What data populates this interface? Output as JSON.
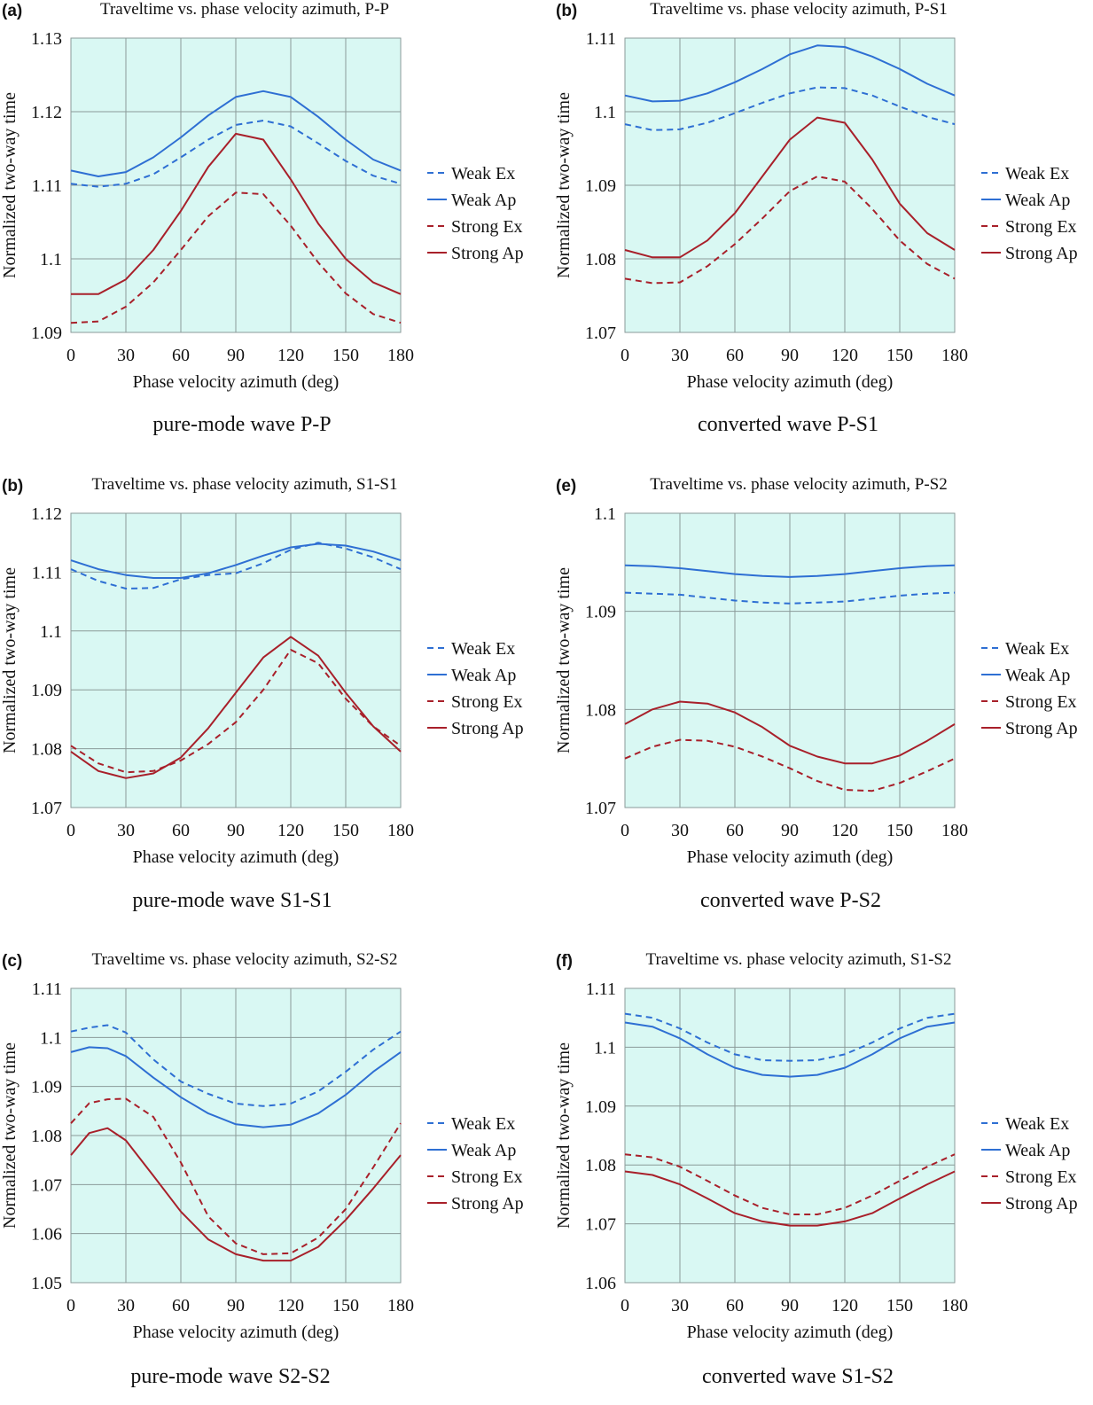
{
  "figure": {
    "captions": [
      "pure-mode wave P-P",
      "converted wave P-S1",
      "pure-mode wave S1-S1",
      "converted wave P-S2",
      "pure-mode wave S2-S2",
      "converted wave S1-S2"
    ]
  },
  "colors": {
    "plot_background": "#d9f8f3",
    "grid": "#8a9a98",
    "weak": "#2e6fd3",
    "strong": "#a8202a"
  },
  "chart_data": [
    {
      "type": "line",
      "panel_label": "(a)",
      "title": "Traveltime vs. phase velocity azimuth, P-P",
      "xlabel": "Phase velocity azimuth (deg)",
      "ylabel": "Normalized two-way time",
      "xlim": [
        0,
        180
      ],
      "ylim": [
        1.09,
        1.13
      ],
      "xticks": [
        0,
        30,
        60,
        90,
        120,
        150,
        180
      ],
      "yticks": [
        1.09,
        1.1,
        1.11,
        1.12,
        1.13
      ],
      "ytick_labels": [
        "1.09",
        "1.1",
        "1.11",
        "1.12",
        "1.13"
      ],
      "grid": true,
      "legend": "right",
      "x": [
        0,
        15,
        30,
        45,
        60,
        75,
        90,
        105,
        120,
        135,
        150,
        165,
        180
      ],
      "series": [
        {
          "name": "Weak Ex",
          "style": "dashed",
          "color": "weak",
          "values": [
            1.1102,
            1.1098,
            1.1102,
            1.1115,
            1.1138,
            1.1162,
            1.1182,
            1.1188,
            1.118,
            1.1157,
            1.1133,
            1.1113,
            1.1102
          ]
        },
        {
          "name": "Weak Ap",
          "style": "solid",
          "color": "weak",
          "values": [
            1.112,
            1.1112,
            1.1118,
            1.1138,
            1.1165,
            1.1195,
            1.122,
            1.1228,
            1.122,
            1.1193,
            1.1162,
            1.1135,
            1.112
          ]
        },
        {
          "name": "Strong Ex",
          "style": "dashed",
          "color": "strong",
          "values": [
            1.0913,
            1.0915,
            1.0935,
            1.0968,
            1.1012,
            1.1058,
            1.109,
            1.1088,
            1.1045,
            1.0995,
            1.0953,
            1.0925,
            1.0913
          ]
        },
        {
          "name": "Strong Ap",
          "style": "solid",
          "color": "strong",
          "values": [
            1.0952,
            1.0952,
            1.0972,
            1.1012,
            1.1065,
            1.1125,
            1.117,
            1.1162,
            1.1108,
            1.1048,
            1.1,
            1.0968,
            1.0952
          ]
        }
      ]
    },
    {
      "type": "line",
      "panel_label": "(b)",
      "title": "Traveltime vs. phase velocity azimuth, P-S1",
      "xlabel": "Phase velocity azimuth (deg)",
      "ylabel": "Normalized two-way time",
      "xlim": [
        0,
        180
      ],
      "ylim": [
        1.07,
        1.11
      ],
      "xticks": [
        0,
        30,
        60,
        90,
        120,
        150,
        180
      ],
      "yticks": [
        1.07,
        1.08,
        1.09,
        1.1,
        1.11
      ],
      "ytick_labels": [
        "1.07",
        "1.08",
        "1.09",
        "1.1",
        "1.11"
      ],
      "grid": true,
      "legend": "right",
      "x": [
        0,
        15,
        30,
        45,
        60,
        75,
        90,
        105,
        120,
        135,
        150,
        165,
        180
      ],
      "series": [
        {
          "name": "Weak Ex",
          "style": "dashed",
          "color": "weak",
          "values": [
            1.0983,
            1.0975,
            1.0976,
            1.0985,
            1.0998,
            1.1012,
            1.1025,
            1.1033,
            1.1032,
            1.1022,
            1.1007,
            1.0993,
            1.0983
          ]
        },
        {
          "name": "Weak Ap",
          "style": "solid",
          "color": "weak",
          "values": [
            1.1022,
            1.1014,
            1.1015,
            1.1025,
            1.104,
            1.1058,
            1.1078,
            1.109,
            1.1088,
            1.1075,
            1.1058,
            1.1038,
            1.1022
          ]
        },
        {
          "name": "Strong Ex",
          "style": "dashed",
          "color": "strong",
          "values": [
            1.0773,
            1.0767,
            1.0768,
            1.079,
            1.082,
            1.0855,
            1.0892,
            1.0912,
            1.0905,
            1.0868,
            1.0825,
            1.0793,
            1.0773
          ]
        },
        {
          "name": "Strong Ap",
          "style": "solid",
          "color": "strong",
          "values": [
            1.0812,
            1.0802,
            1.0802,
            1.0825,
            1.0862,
            1.0912,
            1.0962,
            1.0992,
            1.0985,
            1.0935,
            1.0875,
            1.0835,
            1.0812
          ]
        }
      ]
    },
    {
      "type": "line",
      "panel_label": "(b)",
      "title": "Traveltime vs. phase velocity azimuth, S1-S1",
      "xlabel": "Phase velocity azimuth (deg)",
      "ylabel": "Normalized two-way time",
      "xlim": [
        0,
        180
      ],
      "ylim": [
        1.07,
        1.12
      ],
      "xticks": [
        0,
        30,
        60,
        90,
        120,
        150,
        180
      ],
      "yticks": [
        1.07,
        1.08,
        1.09,
        1.1,
        1.11,
        1.12
      ],
      "ytick_labels": [
        "1.07",
        "1.08",
        "1.09",
        "1.1",
        "1.11",
        "1.12"
      ],
      "grid": true,
      "legend": "right",
      "x": [
        0,
        15,
        30,
        45,
        60,
        75,
        90,
        105,
        120,
        135,
        150,
        165,
        180
      ],
      "series": [
        {
          "name": "Weak Ex",
          "style": "dashed",
          "color": "weak",
          "values": [
            1.1105,
            1.1085,
            1.1072,
            1.1073,
            1.1088,
            1.1095,
            1.1098,
            1.1115,
            1.1138,
            1.115,
            1.114,
            1.1125,
            1.1105
          ]
        },
        {
          "name": "Weak Ap",
          "style": "solid",
          "color": "weak",
          "values": [
            1.112,
            1.1105,
            1.1095,
            1.109,
            1.109,
            1.1098,
            1.1112,
            1.1128,
            1.1142,
            1.1148,
            1.1145,
            1.1135,
            1.112
          ]
        },
        {
          "name": "Strong Ex",
          "style": "dashed",
          "color": "strong",
          "values": [
            1.0805,
            1.0775,
            1.076,
            1.0762,
            1.078,
            1.0808,
            1.0845,
            1.09,
            1.0968,
            1.0945,
            1.0885,
            1.0838,
            1.0805
          ]
        },
        {
          "name": "Strong Ap",
          "style": "solid",
          "color": "strong",
          "values": [
            1.0795,
            1.0762,
            1.075,
            1.0758,
            1.0785,
            1.0835,
            1.0895,
            1.0955,
            1.099,
            1.0958,
            1.0895,
            1.0838,
            1.0795
          ]
        }
      ]
    },
    {
      "type": "line",
      "panel_label": "(e)",
      "title": "Traveltime vs. phase velocity azimuth, P-S2",
      "xlabel": "Phase velocity azimuth (deg)",
      "ylabel": "Normalized two-way time",
      "xlim": [
        0,
        180
      ],
      "ylim": [
        1.07,
        1.1
      ],
      "xticks": [
        0,
        30,
        60,
        90,
        120,
        150,
        180
      ],
      "yticks": [
        1.07,
        1.08,
        1.09,
        1.1
      ],
      "ytick_labels": [
        "1.07",
        "1.08",
        "1.09",
        "1.1"
      ],
      "grid": true,
      "legend": "right",
      "x": [
        0,
        15,
        30,
        45,
        60,
        75,
        90,
        105,
        120,
        135,
        150,
        165,
        180
      ],
      "series": [
        {
          "name": "Weak Ex",
          "style": "dashed",
          "color": "weak",
          "values": [
            1.0919,
            1.0918,
            1.0917,
            1.0914,
            1.0911,
            1.0909,
            1.0908,
            1.0909,
            1.091,
            1.0913,
            1.0916,
            1.0918,
            1.0919
          ]
        },
        {
          "name": "Weak Ap",
          "style": "solid",
          "color": "weak",
          "values": [
            1.0947,
            1.0946,
            1.0944,
            1.0941,
            1.0938,
            1.0936,
            1.0935,
            1.0936,
            1.0938,
            1.0941,
            1.0944,
            1.0946,
            1.0947
          ]
        },
        {
          "name": "Strong Ex",
          "style": "dashed",
          "color": "strong",
          "values": [
            1.075,
            1.0762,
            1.0769,
            1.0768,
            1.0762,
            1.0752,
            1.074,
            1.0727,
            1.0718,
            1.0717,
            1.0725,
            1.0737,
            1.075
          ]
        },
        {
          "name": "Strong Ap",
          "style": "solid",
          "color": "strong",
          "values": [
            1.0785,
            1.08,
            1.0808,
            1.0806,
            1.0797,
            1.0782,
            1.0763,
            1.0752,
            1.0745,
            1.0745,
            1.0753,
            1.0768,
            1.0785
          ]
        }
      ]
    },
    {
      "type": "line",
      "panel_label": "(c)",
      "title": "Traveltime vs. phase velocity azimuth, S2-S2",
      "xlabel": "Phase velocity azimuth (deg)",
      "ylabel": "Normalized two-way time",
      "xlim": [
        0,
        180
      ],
      "ylim": [
        1.05,
        1.11
      ],
      "xticks": [
        0,
        30,
        60,
        90,
        120,
        150,
        180
      ],
      "yticks": [
        1.05,
        1.06,
        1.07,
        1.08,
        1.09,
        1.1,
        1.11
      ],
      "ytick_labels": [
        "1.05",
        "1.06",
        "1.07",
        "1.08",
        "1.09",
        "1.1",
        "1.11"
      ],
      "grid": true,
      "legend": "right",
      "x": [
        0,
        10,
        20,
        30,
        45,
        60,
        75,
        90,
        105,
        120,
        135,
        150,
        165,
        180
      ],
      "series": [
        {
          "name": "Weak Ex",
          "style": "dashed",
          "color": "weak",
          "values": [
            1.1012,
            1.102,
            1.1025,
            1.101,
            1.0955,
            1.091,
            1.0885,
            1.0865,
            1.086,
            1.0865,
            1.089,
            1.093,
            1.0975,
            1.1012
          ]
        },
        {
          "name": "Weak Ap",
          "style": "solid",
          "color": "weak",
          "values": [
            1.097,
            1.098,
            1.0978,
            1.0962,
            1.0918,
            1.0878,
            1.0845,
            1.0823,
            1.0817,
            1.0822,
            1.0845,
            1.0883,
            1.093,
            1.097
          ]
        },
        {
          "name": "Strong Ex",
          "style": "dashed",
          "color": "strong",
          "values": [
            1.0825,
            1.0866,
            1.0874,
            1.0875,
            1.0838,
            1.0745,
            1.0635,
            1.058,
            1.0558,
            1.056,
            1.0592,
            1.065,
            1.0735,
            1.0825
          ]
        },
        {
          "name": "Strong Ap",
          "style": "solid",
          "color": "strong",
          "values": [
            1.076,
            1.0805,
            1.0815,
            1.079,
            1.0718,
            1.0645,
            1.0588,
            1.0558,
            1.0545,
            1.0545,
            1.0573,
            1.0628,
            1.0692,
            1.076
          ]
        }
      ]
    },
    {
      "type": "line",
      "panel_label": "(f)",
      "title": "Traveltime vs. phase velocity azimuth, S1-S2",
      "xlabel": "Phase velocity azimuth (deg)",
      "ylabel": "Normalized two-way time",
      "xlim": [
        0,
        180
      ],
      "ylim": [
        1.06,
        1.11
      ],
      "xticks": [
        0,
        30,
        60,
        90,
        120,
        150,
        180
      ],
      "yticks": [
        1.06,
        1.07,
        1.08,
        1.09,
        1.1,
        1.11
      ],
      "ytick_labels": [
        "1.06",
        "1.07",
        "1.08",
        "1.09",
        "1.1",
        "1.11"
      ],
      "grid": true,
      "legend": "right",
      "x": [
        0,
        15,
        30,
        45,
        60,
        75,
        90,
        105,
        120,
        135,
        150,
        165,
        180
      ],
      "series": [
        {
          "name": "Weak Ex",
          "style": "dashed",
          "color": "weak",
          "values": [
            1.1057,
            1.105,
            1.1032,
            1.1008,
            1.0988,
            1.0978,
            1.0977,
            1.0978,
            1.0988,
            1.1008,
            1.1032,
            1.105,
            1.1057
          ]
        },
        {
          "name": "Weak Ap",
          "style": "solid",
          "color": "weak",
          "values": [
            1.1042,
            1.1035,
            1.1015,
            1.0988,
            1.0965,
            1.0953,
            1.095,
            1.0953,
            1.0965,
            1.0988,
            1.1015,
            1.1035,
            1.1042
          ]
        },
        {
          "name": "Strong Ex",
          "style": "dashed",
          "color": "strong",
          "values": [
            1.0818,
            1.0813,
            1.0797,
            1.0773,
            1.0748,
            1.0727,
            1.0716,
            1.0716,
            1.0727,
            1.0748,
            1.0773,
            1.0797,
            1.0818
          ]
        },
        {
          "name": "Strong Ap",
          "style": "solid",
          "color": "strong",
          "values": [
            1.0789,
            1.0783,
            1.0767,
            1.0743,
            1.0718,
            1.0704,
            1.0697,
            1.0697,
            1.0704,
            1.0718,
            1.0743,
            1.0767,
            1.0789
          ]
        }
      ]
    }
  ]
}
